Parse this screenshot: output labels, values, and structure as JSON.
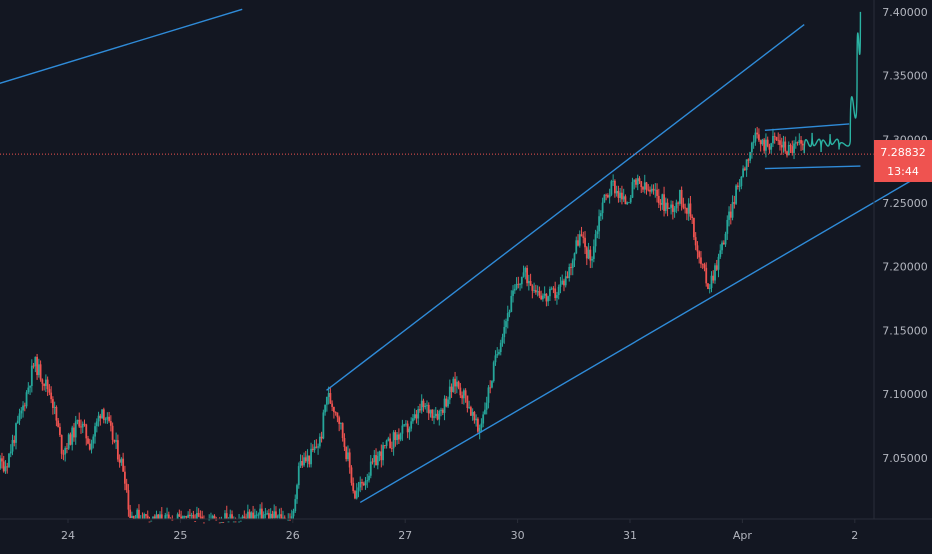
{
  "chart_data": {
    "type": "candlestick",
    "x_ticks": [
      "24",
      "25",
      "26",
      "27",
      "30",
      "31",
      "Apr",
      "2"
    ],
    "y_ticks": [
      "7.40000",
      "7.35000",
      "7.30000",
      "7.25000",
      "7.20000",
      "7.15000",
      "7.10000",
      "7.05000"
    ],
    "ylim": [
      7.002,
      7.403
    ],
    "current_price": {
      "label": "7.28832",
      "value": 7.28832
    },
    "countdown": "13:44",
    "grid": false,
    "colors": {
      "background": "#131722",
      "up": "#26a69a",
      "down": "#ef5350",
      "trendline": "#2f8bd8",
      "projection": "#2bb3a3",
      "price_line": "#ef5350",
      "axis_text": "#b2b5be"
    },
    "series": [
      {
        "points": [
          [
            23.45,
            7.045
          ],
          [
            23.6,
            7.09
          ],
          [
            23.7,
            7.125
          ],
          [
            23.85,
            7.1
          ],
          [
            23.95,
            7.055
          ],
          [
            24.05,
            7.07
          ],
          [
            24.1,
            7.08
          ],
          [
            24.2,
            7.06
          ],
          [
            24.3,
            7.09
          ],
          [
            24.4,
            7.065
          ],
          [
            24.5,
            7.04
          ],
          [
            24.55,
            7.005
          ],
          [
            24.9,
            7.0
          ],
          [
            25.5,
            7.002
          ],
          [
            25.75,
            7.005
          ],
          [
            26.0,
            7.0
          ],
          [
            26.05,
            7.045
          ],
          [
            26.15,
            7.05
          ],
          [
            26.25,
            7.065
          ],
          [
            26.3,
            7.1
          ],
          [
            26.4,
            7.085
          ],
          [
            26.5,
            7.045
          ],
          [
            26.55,
            7.02
          ],
          [
            26.65,
            7.035
          ],
          [
            26.75,
            7.05
          ],
          [
            26.9,
            7.065
          ],
          [
            27.05,
            7.075
          ],
          [
            27.15,
            7.09
          ],
          [
            27.3,
            7.085
          ],
          [
            27.45,
            7.11
          ],
          [
            27.55,
            7.095
          ],
          [
            27.65,
            7.07
          ],
          [
            27.75,
            7.105
          ],
          [
            27.85,
            7.145
          ],
          [
            27.95,
            7.175
          ],
          [
            28.05,
            7.195
          ],
          [
            28.15,
            7.185
          ],
          [
            28.25,
            7.175
          ],
          [
            28.35,
            7.18
          ],
          [
            28.45,
            7.195
          ],
          [
            28.55,
            7.225
          ],
          [
            28.65,
            7.205
          ],
          [
            28.75,
            7.25
          ],
          [
            28.85,
            7.265
          ],
          [
            28.95,
            7.25
          ],
          [
            29.05,
            7.265
          ],
          [
            29.15,
            7.26
          ],
          [
            29.25,
            7.255
          ],
          [
            29.35,
            7.245
          ],
          [
            29.45,
            7.255
          ],
          [
            29.55,
            7.24
          ],
          [
            29.6,
            7.21
          ],
          [
            29.7,
            7.185
          ],
          [
            29.8,
            7.21
          ],
          [
            29.9,
            7.245
          ],
          [
            30.0,
            7.275
          ],
          [
            30.1,
            7.3
          ],
          [
            30.2,
            7.296
          ],
          [
            30.3,
            7.3
          ],
          [
            30.4,
            7.292
          ],
          [
            30.5,
            7.296
          ],
          [
            30.55,
            7.289
          ]
        ]
      }
    ],
    "projection_path_points": [
      [
        30.55,
        7.289
      ],
      [
        30.62,
        7.305
      ],
      [
        30.7,
        7.29
      ],
      [
        30.78,
        7.304
      ],
      [
        30.86,
        7.292
      ],
      [
        30.96,
        7.3
      ],
      [
        31.02,
        7.35
      ],
      [
        31.05,
        7.4
      ]
    ],
    "drawings": {
      "top_line": [
        [
          22.43,
          7.318
        ],
        [
          25.55,
          7.402
        ]
      ],
      "channel_upper": [
        [
          26.3,
          7.103
        ],
        [
          30.55,
          7.39
        ]
      ],
      "channel_lower": [
        [
          26.6,
          7.015
        ],
        [
          31.55,
          7.27
        ]
      ],
      "flag_upper": [
        [
          30.2,
          7.307
        ],
        [
          30.95,
          7.312
        ]
      ],
      "flag_lower": [
        [
          30.2,
          7.277
        ],
        [
          31.05,
          7.279
        ]
      ]
    }
  }
}
